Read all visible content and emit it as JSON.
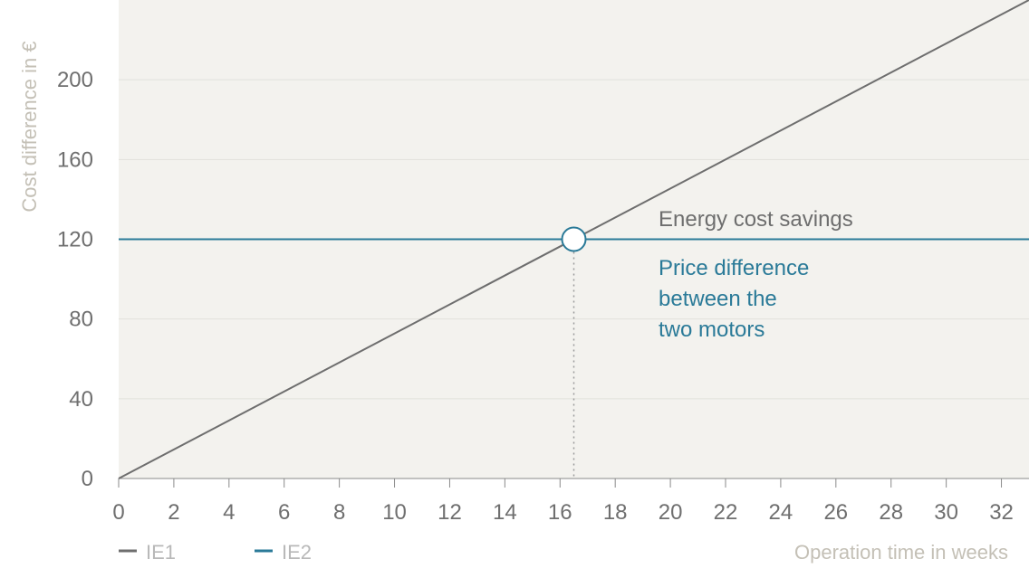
{
  "chart_data": {
    "type": "line",
    "xlabel": "Operation time in weeks",
    "ylabel": "Cost difference in €",
    "xlim": [
      0,
      33
    ],
    "ylim": [
      0,
      240
    ],
    "x_ticks": [
      0,
      2,
      4,
      6,
      8,
      10,
      12,
      14,
      16,
      18,
      20,
      22,
      24,
      26,
      28,
      30,
      32
    ],
    "y_ticks": [
      0,
      40,
      80,
      120,
      160,
      200
    ],
    "grid": true,
    "legend": "bottom-left",
    "series": [
      {
        "name": "IE1",
        "color": "#6e6e6e",
        "x": [
          0,
          33
        ],
        "y": [
          0,
          240
        ]
      },
      {
        "name": "IE2",
        "color": "#2a7a98",
        "x": [
          0,
          33
        ],
        "y": [
          120,
          120
        ]
      }
    ],
    "breakeven": {
      "x": 16.5,
      "y": 120
    },
    "annotations": {
      "energy": "Energy cost savings",
      "price": [
        "Price difference",
        "between the",
        "two motors"
      ]
    }
  },
  "colors": {
    "plot_background": "#f3f2ee",
    "gridline": "#e2e1dc",
    "ie1": "#6e6e6e",
    "ie2": "#2a7a98"
  }
}
